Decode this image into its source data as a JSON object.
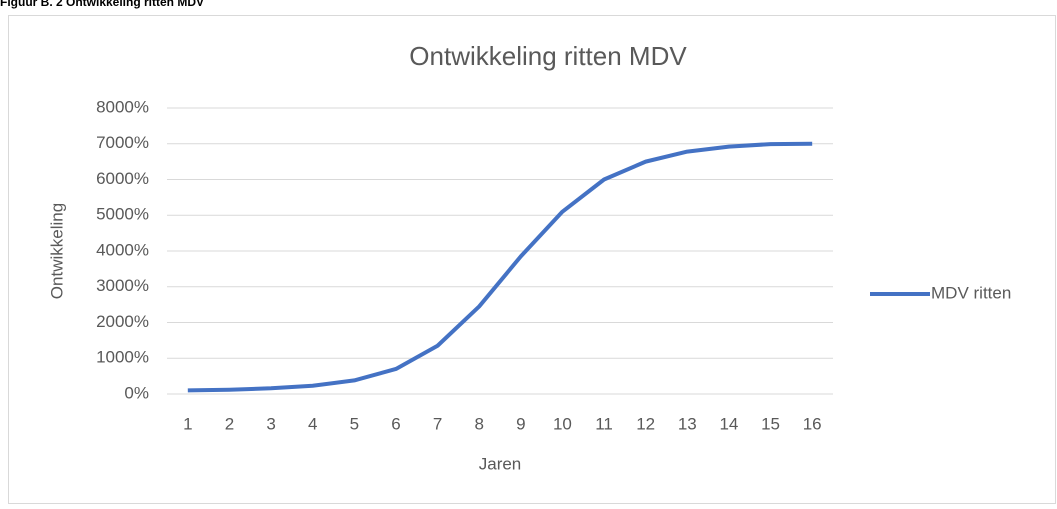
{
  "caption": "Figuur B. 2 Ontwikkeling ritten MDV",
  "chart_data": {
    "type": "line",
    "title": "Ontwikkeling ritten MDV",
    "x_label": "Jaren",
    "y_label": "Ontwikkeling",
    "categories": [
      "1",
      "2",
      "3",
      "4",
      "5",
      "6",
      "7",
      "8",
      "9",
      "10",
      "11",
      "12",
      "13",
      "14",
      "15",
      "16"
    ],
    "series": [
      {
        "name": "MDV ritten",
        "color": "#4472c4",
        "values": [
          100,
          120,
          160,
          230,
          380,
          700,
          1350,
          2450,
          3850,
          5100,
          6000,
          6500,
          6780,
          6920,
          6990,
          7000
        ]
      }
    ],
    "ylim": [
      0,
      8000
    ],
    "yticks": [
      {
        "value": 0,
        "label": "0%"
      },
      {
        "value": 1000,
        "label": "1000%"
      },
      {
        "value": 2000,
        "label": "2000%"
      },
      {
        "value": 3000,
        "label": "3000%"
      },
      {
        "value": 4000,
        "label": "4000%"
      },
      {
        "value": 5000,
        "label": "5000%"
      },
      {
        "value": 6000,
        "label": "6000%"
      },
      {
        "value": 7000,
        "label": "7000%"
      },
      {
        "value": 8000,
        "label": "8000%"
      }
    ],
    "grid": true,
    "legend": "right"
  }
}
